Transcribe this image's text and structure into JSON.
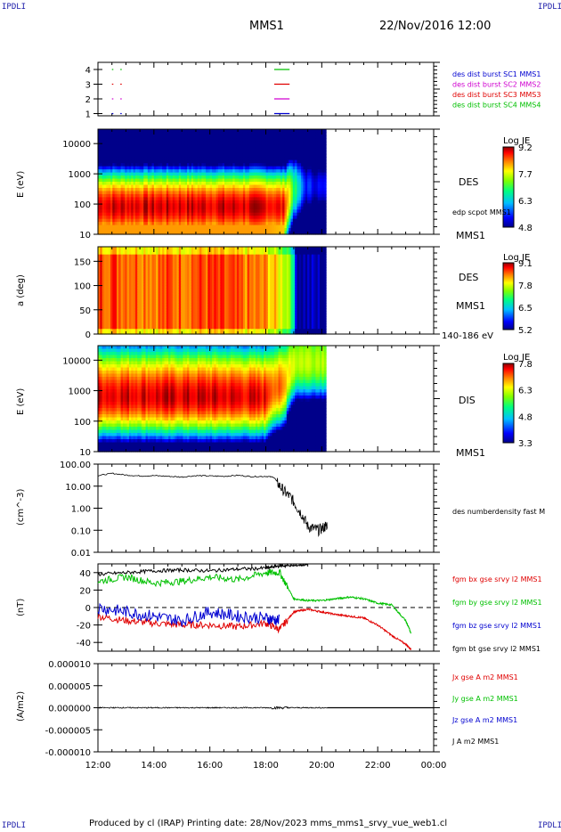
{
  "corners": {
    "tl": "IPDLI",
    "tr": "IPDLI",
    "bl": "IPDLI",
    "br": "IPDLI"
  },
  "header": {
    "spacecraft": "MMS1",
    "datetime": "22/Nov/2016 12:00"
  },
  "footer": "Produced by cl (IRAP)   Printing date: 28/Nov/2023   mms_mms1_srvy_vue_web1.cl",
  "colors": {
    "red": "#e00000",
    "green": "#00c000",
    "blue": "#0000d0",
    "magenta": "#d000d0",
    "black": "#000000"
  },
  "xaxis": {
    "ticks": [
      "12:00",
      "14:00",
      "16:00",
      "18:00",
      "20:00",
      "22:00",
      "00:00"
    ]
  },
  "panels": {
    "sc": {
      "yticks": [
        "4",
        "3",
        "2",
        "1"
      ],
      "legend": [
        {
          "text": "des dist burst SC1 MMS1",
          "color": "#0000d0"
        },
        {
          "text": "des dist burst SC2 MMS2",
          "color": "#d000d0"
        },
        {
          "text": "des dist burst SC3 MMS3",
          "color": "#e00000"
        },
        {
          "text": "des dist burst SC4 MMS4",
          "color": "#00c000"
        }
      ]
    },
    "des_e": {
      "ylabel": "E (eV)",
      "yticks": [
        "10000",
        "1000",
        "100",
        "10"
      ],
      "label": "DES",
      "sublabel": "edp scpot MMS1",
      "sc": "MMS1",
      "cb_title": "Log JE",
      "cb_ticks": [
        "9.2",
        "7.7",
        "6.3",
        "4.8"
      ]
    },
    "des_pa": {
      "ylabel": "a (deg)",
      "yticks": [
        "150",
        "100",
        "50",
        "0"
      ],
      "label": "DES",
      "sc": "MMS1",
      "energy": "140-186 eV",
      "cb_title": "Log JE",
      "cb_ticks": [
        "9.1",
        "7.8",
        "6.5",
        "5.2"
      ]
    },
    "dis_e": {
      "ylabel": "E (eV)",
      "yticks": [
        "10000",
        "1000",
        "100",
        "10"
      ],
      "label": "DIS",
      "sc": "MMS1",
      "cb_title": "Log JE",
      "cb_ticks": [
        "7.8",
        "6.3",
        "4.8",
        "3.3"
      ]
    },
    "dens": {
      "ylabel": "(cm^-3)",
      "yticks": [
        "100.00",
        "10.00",
        "1.00",
        "0.10",
        "0.01"
      ],
      "legend": "des numberdensity fast M"
    },
    "bfield": {
      "ylabel": "(nT)",
      "yticks": [
        "40",
        "20",
        "0",
        "-20",
        "-40"
      ],
      "legend": [
        {
          "text": "fgm bx gse srvy l2 MMS1",
          "color": "#e00000"
        },
        {
          "text": "fgm by gse srvy l2 MMS1",
          "color": "#00c000"
        },
        {
          "text": "fgm bz gse srvy l2 MMS1",
          "color": "#0000d0"
        },
        {
          "text": "fgm bt gse srvy l2 MMS1",
          "color": "#000000"
        }
      ]
    },
    "curr": {
      "ylabel": "(A/m2)",
      "yticks": [
        "0.000010",
        "0.000005",
        "0.000000",
        "-0.000005",
        "-0.000010"
      ],
      "legend": [
        {
          "text": "Jx gse A m2 MMS1",
          "color": "#e00000"
        },
        {
          "text": "Jy gse A m2 MMS1",
          "color": "#00c000"
        },
        {
          "text": "Jz gse A m2 MMS1",
          "color": "#0000d0"
        },
        {
          "text": "J A m2 MMS1",
          "color": "#000000"
        }
      ]
    }
  },
  "chart_data": [
    {
      "type": "line",
      "title": "",
      "xlabel": "",
      "ylabel": "",
      "x": [
        12,
        24
      ],
      "series": [
        {
          "name": "des dist burst SC1 MMS1",
          "y": [
            1,
            1
          ]
        },
        {
          "name": "des dist burst SC2 MMS2",
          "y": [
            2,
            2
          ]
        },
        {
          "name": "des dist burst SC3 MMS3",
          "y": [
            3,
            3
          ]
        },
        {
          "name": "des dist burst SC4 MMS4",
          "y": [
            4,
            4
          ]
        }
      ],
      "ylim": [
        0.5,
        4.5
      ]
    },
    {
      "type": "heatmap",
      "ylabel": "E (eV)",
      "yscale": "log",
      "ylim": [
        10,
        30000
      ],
      "xlim": [
        12,
        24
      ],
      "data_end_hour": 20.15,
      "colorbar": {
        "title": "Log JE",
        "range": [
          4.8,
          9.2
        ]
      },
      "profile": {
        "hours": [
          12,
          13,
          14,
          15,
          16,
          17,
          18,
          18.7,
          19.0,
          19.4,
          20.15
        ],
        "peak_energy_eV": [
          80,
          80,
          80,
          80,
          80,
          80,
          80,
          80,
          300,
          400,
          400
        ],
        "peak_logJE": [
          9.0,
          9.0,
          9.0,
          9.0,
          9.0,
          9.0,
          9.0,
          8.8,
          7.0,
          5.5,
          5.2
        ]
      }
    },
    {
      "type": "heatmap",
      "ylabel": "a (deg)",
      "ylim": [
        0,
        180
      ],
      "xlim": [
        12,
        24
      ],
      "data_end_hour": 20.15,
      "colorbar": {
        "title": "Log JE",
        "range": [
          5.2,
          9.1
        ]
      },
      "profile": {
        "hours": [
          12,
          14,
          16,
          18,
          18.9,
          19.1,
          20.15
        ],
        "logJE": [
          8.7,
          8.5,
          8.6,
          8.3,
          7.6,
          5.4,
          5.3
        ]
      }
    },
    {
      "type": "heatmap",
      "ylabel": "E (eV)",
      "yscale": "log",
      "ylim": [
        10,
        30000
      ],
      "xlim": [
        12,
        24
      ],
      "data_end_hour": 20.15,
      "colorbar": {
        "title": "Log JE",
        "range": [
          3.3,
          7.8
        ]
      },
      "profile": {
        "hours": [
          12,
          14,
          16,
          18,
          18.7,
          19.1,
          20.15
        ],
        "peak_energy_eV": [
          600,
          600,
          600,
          600,
          1500,
          8000,
          8000
        ],
        "peak_logJE": [
          7.6,
          7.6,
          7.6,
          7.5,
          6.8,
          6.2,
          6.2
        ]
      }
    },
    {
      "type": "line",
      "ylabel": "(cm^-3)",
      "yscale": "log",
      "ylim": [
        0.01,
        100
      ],
      "xlim": [
        12,
        24
      ],
      "series": [
        {
          "name": "des numberdensity fast M",
          "x": [
            12,
            12.5,
            13,
            13.5,
            14,
            14.5,
            15,
            15.5,
            16,
            16.5,
            17,
            17.5,
            18,
            18.3,
            18.5,
            18.7,
            18.9,
            19.1,
            19.3,
            19.5,
            19.7,
            19.9,
            20.1,
            20.2
          ],
          "y": [
            30,
            38,
            32,
            29,
            30,
            28,
            26,
            30,
            29,
            28,
            31,
            27,
            28,
            25,
            10,
            5,
            3,
            1.2,
            0.5,
            0.15,
            0.12,
            0.1,
            0.14,
            0.18
          ]
        }
      ]
    },
    {
      "type": "line",
      "ylabel": "(nT)",
      "ylim": [
        -50,
        50
      ],
      "xlim": [
        12,
        24
      ],
      "x": [
        12,
        13,
        14,
        15,
        16,
        17,
        18,
        18.5,
        19,
        19.5,
        20,
        20.5,
        21,
        21.5,
        22,
        22.5,
        23,
        23.2
      ],
      "series": [
        {
          "name": "fgm bx gse srvy l2 MMS1",
          "y": [
            -10,
            -15,
            -18,
            -20,
            -20,
            -22,
            -18,
            -25,
            -5,
            -2,
            -5,
            -8,
            -10,
            -12,
            -20,
            -32,
            -42,
            -48
          ]
        },
        {
          "name": "fgm by gse srvy l2 MMS1",
          "y": [
            30,
            35,
            28,
            30,
            35,
            32,
            40,
            40,
            10,
            8,
            8,
            10,
            12,
            10,
            5,
            3,
            -15,
            -30
          ]
        },
        {
          "name": "fgm bz gse srvy l2 MMS1",
          "y": [
            0,
            -5,
            -10,
            -15,
            -5,
            -10,
            -12,
            -15,
            null,
            null,
            null,
            null,
            null,
            null,
            null,
            null,
            null,
            null
          ]
        },
        {
          "name": "fgm bt gse srvy l2 MMS1",
          "y": [
            38,
            40,
            42,
            43,
            42,
            44,
            45,
            48,
            48,
            49,
            null,
            null,
            null,
            null,
            null,
            null,
            null,
            null
          ]
        }
      ]
    },
    {
      "type": "line",
      "ylabel": "(A/m2)",
      "ylim": [
        -1e-05,
        1e-05
      ],
      "xlim": [
        12,
        24
      ],
      "series": [
        {
          "name": "J A m2 MMS1",
          "x": [
            12,
            20.2
          ],
          "y": [
            0,
            0
          ]
        }
      ]
    }
  ]
}
